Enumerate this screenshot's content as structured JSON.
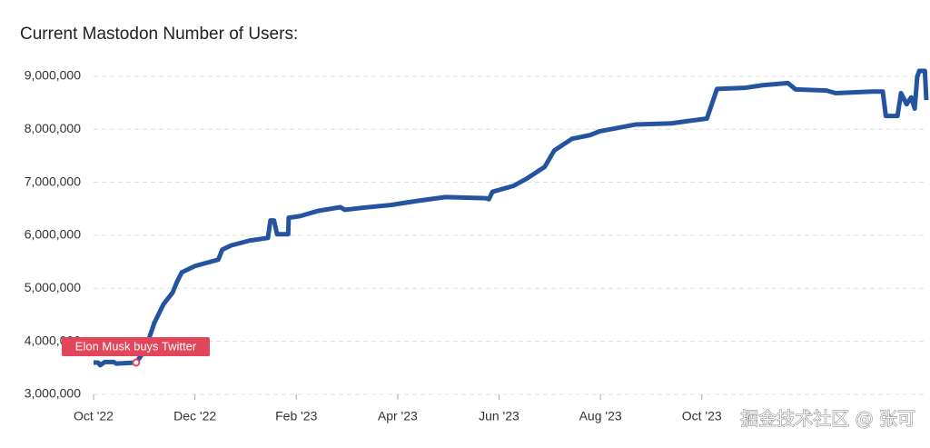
{
  "chart_data": {
    "type": "line",
    "title": "Current Mastodon Number of Users:",
    "x": [
      0,
      0.09,
      0.13,
      0.22,
      0.4,
      0.45,
      0.84,
      1.02,
      1.2,
      1.38,
      1.56,
      1.65,
      1.74,
      2.0,
      2.46,
      2.54,
      2.72,
      3.08,
      3.44,
      3.49,
      3.56,
      3.62,
      3.84,
      3.85,
      4.07,
      4.43,
      4.87,
      4.96,
      5.32,
      5.86,
      6.4,
      6.94,
      7.74,
      7.8,
      7.87,
      8.28,
      8.55,
      8.9,
      9.09,
      9.44,
      9.8,
      9.98,
      10.7,
      11.4,
      11.77,
      12.1,
      12.3,
      12.85,
      13.2,
      13.7,
      13.85,
      14.46,
      14.64,
      15.36,
      15.57,
      15.63,
      15.86,
      15.93,
      16.04,
      16.13,
      16.2,
      16.25,
      16.29,
      16.4,
      16.43
    ],
    "values": [
      3600000,
      3600000,
      3550000,
      3610000,
      3610000,
      3580000,
      3600000,
      3840000,
      4350000,
      4700000,
      4920000,
      5130000,
      5300000,
      5420000,
      5540000,
      5730000,
      5810000,
      5900000,
      5950000,
      6280000,
      6280000,
      6020000,
      6020000,
      6330000,
      6360000,
      6460000,
      6530000,
      6480000,
      6520000,
      6570000,
      6650000,
      6720000,
      6700000,
      6680000,
      6820000,
      6930000,
      7070000,
      7290000,
      7600000,
      7820000,
      7890000,
      7960000,
      8090000,
      8110000,
      8160000,
      8200000,
      8760000,
      8780000,
      8830000,
      8870000,
      8750000,
      8730000,
      8680000,
      8710000,
      8710000,
      8250000,
      8250000,
      8680000,
      8470000,
      8600000,
      8390000,
      8990000,
      9100000,
      9100000,
      8550000
    ],
    "color": "#2453a0",
    "xlim": [
      0,
      16.43
    ],
    "ylim": [
      3000000,
      9100000
    ],
    "xticks": [
      {
        "value": 0,
        "label": "Oct '22"
      },
      {
        "value": 2,
        "label": "Dec '22"
      },
      {
        "value": 4,
        "label": "Feb '23"
      },
      {
        "value": 6,
        "label": "Apr '23"
      },
      {
        "value": 8,
        "label": "Jun '23"
      },
      {
        "value": 10,
        "label": "Aug '23"
      },
      {
        "value": 12,
        "label": "Oct '23"
      }
    ],
    "yticks": [
      {
        "value": 3000000,
        "label": "3,000,000"
      },
      {
        "value": 4000000,
        "label": "4,000,000"
      },
      {
        "value": 5000000,
        "label": "5,000,000"
      },
      {
        "value": 6000000,
        "label": "6,000,000"
      },
      {
        "value": 7000000,
        "label": "7,000,000"
      },
      {
        "value": 8000000,
        "label": "8,000,000"
      },
      {
        "value": 9000000,
        "label": "9,000,000"
      }
    ],
    "grid": true,
    "annotation": {
      "text": "Elon Musk buys Twitter",
      "x": 0.84,
      "y": 3600000
    }
  },
  "watermark": "掘金技术社区 @ 张可"
}
